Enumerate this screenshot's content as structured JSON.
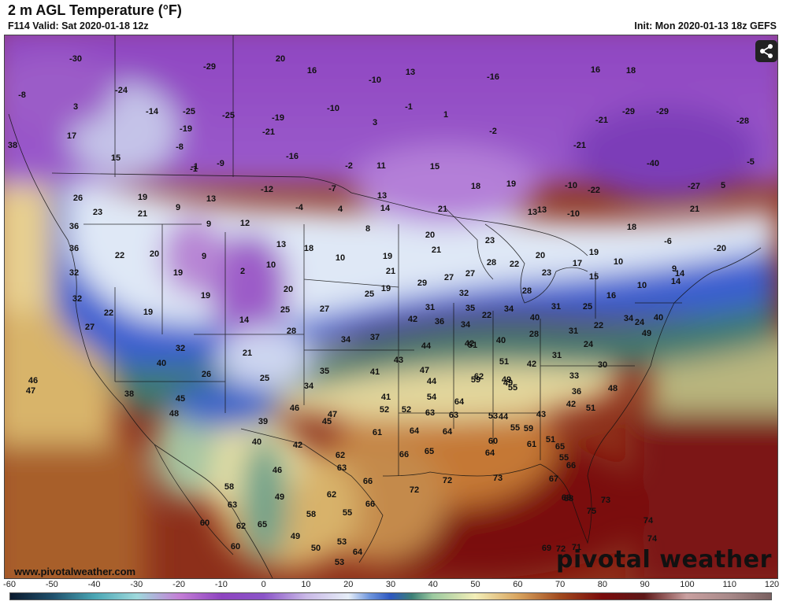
{
  "header": {
    "title": "2 m AGL Temperature (°F)",
    "valid": "F114 Valid: Sat 2020-01-18 12z",
    "init": "Init: Mon 2020-01-13 18z GEFS"
  },
  "footer": {
    "site": "www.pivotalweather.com",
    "logo": "pivotal weather"
  },
  "share_icon": "share-icon",
  "colorbar": {
    "ticks": [
      "-60",
      "-50",
      "-40",
      "-30",
      "-20",
      "-10",
      "0",
      "10",
      "20",
      "30",
      "40",
      "50",
      "60",
      "70",
      "80",
      "90",
      "100",
      "110",
      "120"
    ],
    "stops": [
      {
        "v": -60,
        "c": "#0a1a2e"
      },
      {
        "v": -50,
        "c": "#1f4f6b"
      },
      {
        "v": -40,
        "c": "#4aa6b4"
      },
      {
        "v": -30,
        "c": "#9fd9dc"
      },
      {
        "v": -20,
        "c": "#c47fd6"
      },
      {
        "v": -10,
        "c": "#8e44c0"
      },
      {
        "v": 0,
        "c": "#8b55c8"
      },
      {
        "v": 10,
        "c": "#c9b8e6"
      },
      {
        "v": 20,
        "c": "#e6eef8"
      },
      {
        "v": 25,
        "c": "#6f96dd"
      },
      {
        "v": 30,
        "c": "#2d57c0"
      },
      {
        "v": 35,
        "c": "#3c7f76"
      },
      {
        "v": 40,
        "c": "#9ccaa0"
      },
      {
        "v": 50,
        "c": "#f3eeb8"
      },
      {
        "v": 60,
        "c": "#d9a560"
      },
      {
        "v": 70,
        "c": "#a14a1e"
      },
      {
        "v": 80,
        "c": "#7a0b0b"
      },
      {
        "v": 90,
        "c": "#5e1818"
      },
      {
        "v": 100,
        "c": "#c9a0a0"
      },
      {
        "v": 110,
        "c": "#a98a8a"
      },
      {
        "v": 120,
        "c": "#7a6060"
      }
    ]
  },
  "map_data": {
    "temps": [
      {
        "t": "-30"
      },
      {
        "t": "-29"
      },
      {
        "t": "20"
      },
      {
        "t": "16"
      },
      {
        "t": "13"
      },
      {
        "t": "-16"
      },
      {
        "t": "16"
      },
      {
        "t": "18"
      },
      {
        "t": "-8"
      },
      {
        "t": "-24"
      },
      {
        "t": "-10"
      },
      {
        "t": "3"
      },
      {
        "t": "-14"
      },
      {
        "t": "-25"
      },
      {
        "t": "-25"
      },
      {
        "t": "-19"
      },
      {
        "t": "-10"
      },
      {
        "t": "-1"
      },
      {
        "t": "1"
      },
      {
        "t": "-21"
      },
      {
        "t": "-29"
      },
      {
        "t": "-29"
      },
      {
        "t": "-28"
      },
      {
        "t": "17"
      },
      {
        "t": "-19"
      },
      {
        "t": "-21"
      },
      {
        "t": "3"
      },
      {
        "t": "-2"
      },
      {
        "t": "-21"
      },
      {
        "t": "-8"
      },
      {
        "t": "-16"
      },
      {
        "t": "-1"
      },
      {
        "t": "-40"
      },
      {
        "t": "-5"
      },
      {
        "t": "38"
      },
      {
        "t": "15"
      },
      {
        "t": "-1"
      },
      {
        "t": "-9"
      },
      {
        "t": "-2"
      },
      {
        "t": "11"
      },
      {
        "t": "15"
      },
      {
        "t": "-12"
      },
      {
        "t": "-7"
      },
      {
        "t": "18"
      },
      {
        "t": "19"
      },
      {
        "t": "-10"
      },
      {
        "t": "-22"
      },
      {
        "t": "-27"
      },
      {
        "t": "5"
      },
      {
        "t": "26"
      },
      {
        "t": "19"
      },
      {
        "t": "13"
      },
      {
        "t": "-4"
      },
      {
        "t": "4"
      },
      {
        "t": "13"
      },
      {
        "t": "14"
      },
      {
        "t": "21"
      },
      {
        "t": "13"
      },
      {
        "t": "-10"
      },
      {
        "t": "21"
      },
      {
        "t": "23"
      },
      {
        "t": "21"
      },
      {
        "t": "9"
      },
      {
        "t": "36"
      },
      {
        "t": "9"
      },
      {
        "t": "12"
      },
      {
        "t": "8"
      },
      {
        "t": "20"
      },
      {
        "t": "13"
      },
      {
        "t": "18"
      },
      {
        "t": "-6"
      },
      {
        "t": "-20"
      },
      {
        "t": "36"
      },
      {
        "t": "22"
      },
      {
        "t": "20"
      },
      {
        "t": "9"
      },
      {
        "t": "13"
      },
      {
        "t": "18"
      },
      {
        "t": "10"
      },
      {
        "t": "19"
      },
      {
        "t": "21"
      },
      {
        "t": "23"
      },
      {
        "t": "20"
      },
      {
        "t": "19"
      },
      {
        "t": "17"
      },
      {
        "t": "10"
      },
      {
        "t": "9"
      },
      {
        "t": "32"
      },
      {
        "t": "19"
      },
      {
        "t": "2"
      },
      {
        "t": "10"
      },
      {
        "t": "21"
      },
      {
        "t": "29"
      },
      {
        "t": "27"
      },
      {
        "t": "27"
      },
      {
        "t": "28"
      },
      {
        "t": "22"
      },
      {
        "t": "23"
      },
      {
        "t": "15"
      },
      {
        "t": "14"
      },
      {
        "t": "32"
      },
      {
        "t": "19"
      },
      {
        "t": "20"
      },
      {
        "t": "19"
      },
      {
        "t": "25"
      },
      {
        "t": "31"
      },
      {
        "t": "28"
      },
      {
        "t": "16"
      },
      {
        "t": "10"
      },
      {
        "t": "14"
      },
      {
        "t": "22"
      },
      {
        "t": "19"
      },
      {
        "t": "14"
      },
      {
        "t": "25"
      },
      {
        "t": "27"
      },
      {
        "t": "32"
      },
      {
        "t": "35"
      },
      {
        "t": "34"
      },
      {
        "t": "31"
      },
      {
        "t": "25"
      },
      {
        "t": "22"
      },
      {
        "t": "24"
      },
      {
        "t": "40"
      },
      {
        "t": "27"
      },
      {
        "t": "28"
      },
      {
        "t": "34"
      },
      {
        "t": "37"
      },
      {
        "t": "42"
      },
      {
        "t": "36"
      },
      {
        "t": "34"
      },
      {
        "t": "22"
      },
      {
        "t": "40"
      },
      {
        "t": "31"
      },
      {
        "t": "34"
      },
      {
        "t": "49"
      },
      {
        "t": "40"
      },
      {
        "t": "28"
      },
      {
        "t": "42"
      },
      {
        "t": "32"
      },
      {
        "t": "44"
      },
      {
        "t": "51"
      },
      {
        "t": "24"
      },
      {
        "t": "21"
      },
      {
        "t": "40"
      },
      {
        "t": "51"
      },
      {
        "t": "31"
      },
      {
        "t": "41"
      },
      {
        "t": "43"
      },
      {
        "t": "47"
      },
      {
        "t": "42"
      },
      {
        "t": "30"
      },
      {
        "t": "26"
      },
      {
        "t": "25"
      },
      {
        "t": "35"
      },
      {
        "t": "49"
      },
      {
        "t": "44"
      },
      {
        "t": "59"
      },
      {
        "t": "62"
      },
      {
        "t": "33"
      },
      {
        "t": "46"
      },
      {
        "t": "34"
      },
      {
        "t": "55"
      },
      {
        "t": "49"
      },
      {
        "t": "36"
      },
      {
        "t": "48"
      },
      {
        "t": "47"
      },
      {
        "t": "38"
      },
      {
        "t": "45"
      },
      {
        "t": "41"
      },
      {
        "t": "54"
      },
      {
        "t": "64"
      },
      {
        "t": "52"
      },
      {
        "t": "46"
      },
      {
        "t": "52"
      },
      {
        "t": "51"
      },
      {
        "t": "48"
      },
      {
        "t": "47"
      },
      {
        "t": "45"
      },
      {
        "t": "63"
      },
      {
        "t": "63"
      },
      {
        "t": "53"
      },
      {
        "t": "44"
      },
      {
        "t": "43"
      },
      {
        "t": "42"
      },
      {
        "t": "39"
      },
      {
        "t": "61"
      },
      {
        "t": "64"
      },
      {
        "t": "64"
      },
      {
        "t": "55"
      },
      {
        "t": "59"
      },
      {
        "t": "51"
      },
      {
        "t": "40"
      },
      {
        "t": "42"
      },
      {
        "t": "66"
      },
      {
        "t": "65"
      },
      {
        "t": "64"
      },
      {
        "t": "60"
      },
      {
        "t": "61"
      },
      {
        "t": "65"
      },
      {
        "t": "55"
      },
      {
        "t": "62"
      },
      {
        "t": "46"
      },
      {
        "t": "63"
      },
      {
        "t": "72"
      },
      {
        "t": "73"
      },
      {
        "t": "66"
      },
      {
        "t": "58"
      },
      {
        "t": "66"
      },
      {
        "t": "72"
      },
      {
        "t": "67"
      },
      {
        "t": "49"
      },
      {
        "t": "62"
      },
      {
        "t": "66"
      },
      {
        "t": "68"
      },
      {
        "t": "73"
      },
      {
        "t": "63"
      },
      {
        "t": "58"
      },
      {
        "t": "55"
      },
      {
        "t": "68"
      },
      {
        "t": "75"
      },
      {
        "t": "62"
      },
      {
        "t": "65"
      },
      {
        "t": "60"
      },
      {
        "t": "74"
      },
      {
        "t": "60"
      },
      {
        "t": "49"
      },
      {
        "t": "53"
      },
      {
        "t": "50"
      },
      {
        "t": "74"
      },
      {
        "t": "72"
      },
      {
        "t": "64"
      },
      {
        "t": "69"
      },
      {
        "t": "53"
      },
      {
        "t": "71"
      }
    ]
  }
}
